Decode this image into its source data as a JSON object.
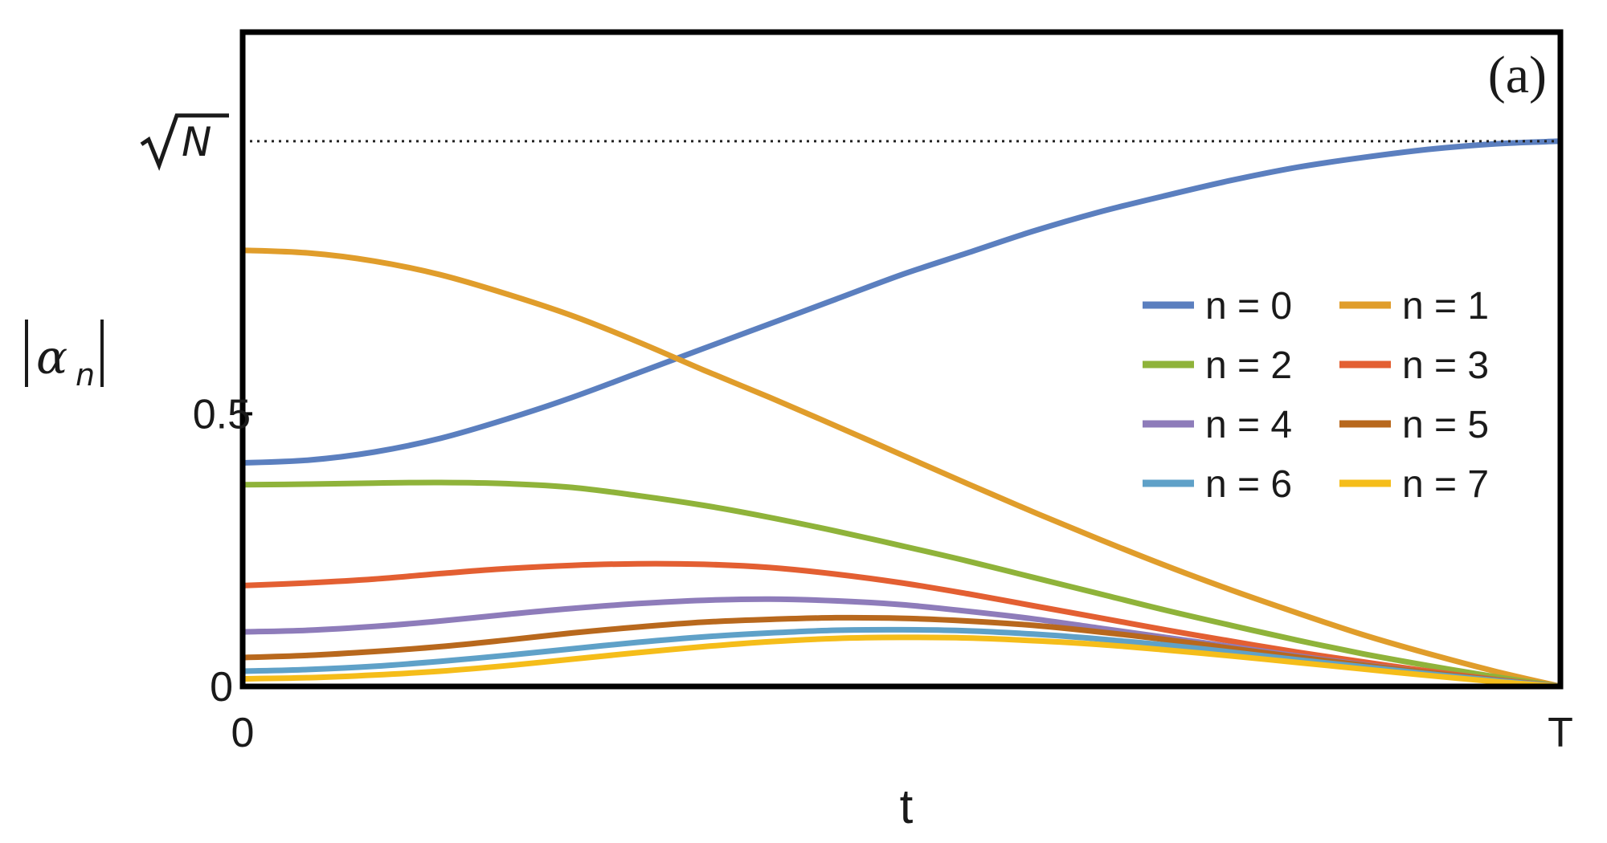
{
  "chart_data": {
    "type": "line",
    "panel_label": "(a)",
    "xlabel": "t",
    "ylabel": {
      "main": "α",
      "sub": "n"
    },
    "xlim": [
      0,
      1
    ],
    "ylim": [
      0,
      1.2
    ],
    "x_ticks": [
      {
        "value": 0,
        "label": "0"
      },
      {
        "value": 1,
        "label": "T"
      }
    ],
    "y_ticks": [
      {
        "value": 0,
        "label": "0"
      },
      {
        "value": 0.5,
        "label": "0.5"
      }
    ],
    "reference_line": {
      "y": 1.0,
      "label": "N",
      "style": "dotted"
    },
    "legend_placement": "right",
    "x": [
      0,
      0.05,
      0.1,
      0.15,
      0.2,
      0.25,
      0.3,
      0.35,
      0.4,
      0.45,
      0.5,
      0.55,
      0.6,
      0.65,
      0.7,
      0.75,
      0.8,
      0.85,
      0.9,
      0.95,
      1.0
    ],
    "series": [
      {
        "name": "n = 0",
        "color": "#5b7fbf",
        "values": [
          0.41,
          0.415,
          0.43,
          0.455,
          0.49,
          0.53,
          0.575,
          0.62,
          0.665,
          0.71,
          0.755,
          0.795,
          0.835,
          0.87,
          0.9,
          0.928,
          0.952,
          0.97,
          0.985,
          0.995,
          1.0
        ]
      },
      {
        "name": "n = 1",
        "color": "#e09d2b",
        "values": [
          0.8,
          0.795,
          0.78,
          0.755,
          0.72,
          0.68,
          0.632,
          0.58,
          0.53,
          0.478,
          0.425,
          0.372,
          0.32,
          0.27,
          0.222,
          0.177,
          0.135,
          0.095,
          0.06,
          0.028,
          0.0
        ]
      },
      {
        "name": "n = 2",
        "color": "#8fb33a",
        "values": [
          0.37,
          0.371,
          0.373,
          0.374,
          0.372,
          0.365,
          0.35,
          0.332,
          0.31,
          0.285,
          0.258,
          0.23,
          0.2,
          0.17,
          0.14,
          0.112,
          0.085,
          0.06,
          0.038,
          0.018,
          0.0
        ]
      },
      {
        "name": "n = 3",
        "color": "#e35f32",
        "values": [
          0.185,
          0.19,
          0.197,
          0.207,
          0.216,
          0.222,
          0.225,
          0.224,
          0.218,
          0.206,
          0.19,
          0.17,
          0.148,
          0.126,
          0.104,
          0.083,
          0.063,
          0.045,
          0.028,
          0.013,
          0.0
        ]
      },
      {
        "name": "n = 4",
        "color": "#8e7cba",
        "values": [
          0.1,
          0.103,
          0.11,
          0.12,
          0.132,
          0.143,
          0.152,
          0.158,
          0.16,
          0.157,
          0.15,
          0.138,
          0.124,
          0.107,
          0.09,
          0.073,
          0.056,
          0.04,
          0.025,
          0.012,
          0.0
        ]
      },
      {
        "name": "n = 5",
        "color": "#b8681d",
        "values": [
          0.053,
          0.057,
          0.064,
          0.073,
          0.085,
          0.098,
          0.109,
          0.118,
          0.123,
          0.126,
          0.125,
          0.12,
          0.112,
          0.1,
          0.086,
          0.07,
          0.054,
          0.039,
          0.025,
          0.012,
          0.0
        ]
      },
      {
        "name": "n = 6",
        "color": "#5fa1c8",
        "values": [
          0.028,
          0.031,
          0.037,
          0.046,
          0.057,
          0.069,
          0.081,
          0.091,
          0.098,
          0.103,
          0.104,
          0.102,
          0.096,
          0.087,
          0.076,
          0.063,
          0.049,
          0.036,
          0.023,
          0.011,
          0.0
        ]
      },
      {
        "name": "n = 7",
        "color": "#f5bd1a",
        "values": [
          0.014,
          0.016,
          0.021,
          0.028,
          0.038,
          0.05,
          0.062,
          0.073,
          0.082,
          0.088,
          0.09,
          0.089,
          0.084,
          0.077,
          0.067,
          0.056,
          0.044,
          0.032,
          0.02,
          0.009,
          0.0
        ]
      }
    ]
  }
}
